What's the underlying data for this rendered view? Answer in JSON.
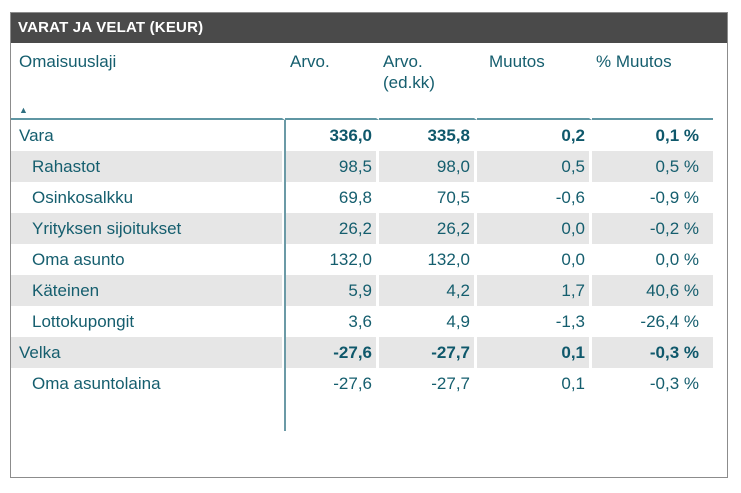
{
  "visual": {
    "title": "VARAT JA VELAT (KEUR)"
  },
  "colors": {
    "title_bar_bg": "#4a4a4a",
    "title_text": "#ffffff",
    "table_text": "#155e6e",
    "bold_text": "#0f586b",
    "row_stripe": "#e6e6e6",
    "gridline": "#5f96a3",
    "border": "#8c8c8c"
  },
  "sort": {
    "column": "Omaisuuslaji",
    "direction": "ascending",
    "icon": "▲"
  },
  "chart_data": {
    "type": "table",
    "title": "VARAT JA VELAT (KEUR)",
    "columns": [
      "Omaisuuslaji",
      "Arvo.",
      "Arvo. (ed.kk)",
      "Muutos",
      "% Muutos"
    ],
    "rows": [
      {
        "label": "Vara",
        "indent": false,
        "bold": true,
        "values": [
          "336,0",
          "335,8",
          "0,2",
          "0,1 %"
        ]
      },
      {
        "label": "Rahastot",
        "indent": true,
        "bold": false,
        "values": [
          "98,5",
          "98,0",
          "0,5",
          "0,5 %"
        ]
      },
      {
        "label": "Osinkosalkku",
        "indent": true,
        "bold": false,
        "values": [
          "69,8",
          "70,5",
          "-0,6",
          "-0,9 %"
        ]
      },
      {
        "label": "Yrityksen sijoitukset",
        "indent": true,
        "bold": false,
        "values": [
          "26,2",
          "26,2",
          "0,0",
          "-0,2 %"
        ]
      },
      {
        "label": "Oma asunto",
        "indent": true,
        "bold": false,
        "values": [
          "132,0",
          "132,0",
          "0,0",
          "0,0 %"
        ]
      },
      {
        "label": "Käteinen",
        "indent": true,
        "bold": false,
        "values": [
          "5,9",
          "4,2",
          "1,7",
          "40,6 %"
        ]
      },
      {
        "label": "Lottokupongit",
        "indent": true,
        "bold": false,
        "values": [
          "3,6",
          "4,9",
          "-1,3",
          "-26,4 %"
        ]
      },
      {
        "label": "Velka",
        "indent": false,
        "bold": true,
        "values": [
          "-27,6",
          "-27,7",
          "0,1",
          "-0,3 %"
        ]
      },
      {
        "label": "Oma asuntolaina",
        "indent": true,
        "bold": false,
        "values": [
          "-27,6",
          "-27,7",
          "0,1",
          "-0,3 %"
        ]
      }
    ]
  }
}
